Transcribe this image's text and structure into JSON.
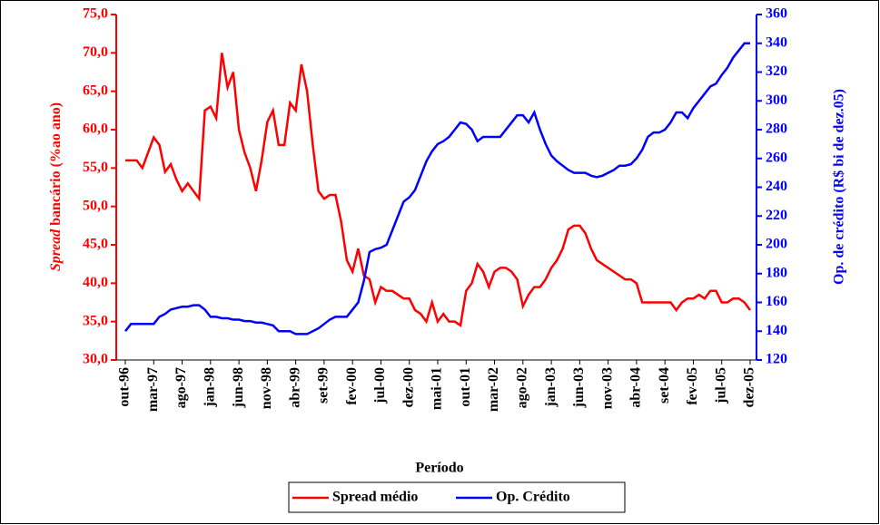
{
  "chart_data": {
    "type": "line",
    "ylabel": [
      "Spread",
      "bancário (%ao ano)"
    ],
    "y2label": "Op. de crédito (R$ bi de dez.05)",
    "xlabel": "Período",
    "categories": [
      "out-96",
      null,
      null,
      null,
      null,
      "mar-97",
      null,
      null,
      null,
      null,
      "ago-97",
      null,
      null,
      null,
      null,
      "jan-98",
      null,
      null,
      null,
      null,
      "jun-98",
      null,
      null,
      null,
      null,
      "nov-98",
      null,
      null,
      null,
      null,
      "abr-99",
      null,
      null,
      null,
      null,
      "set-99",
      null,
      null,
      null,
      null,
      "fev-00",
      null,
      null,
      null,
      null,
      "jul-00",
      null,
      null,
      null,
      null,
      "dez-00",
      null,
      null,
      null,
      null,
      "mai-01",
      null,
      null,
      null,
      null,
      "out-01",
      null,
      null,
      null,
      null,
      "mar-02",
      null,
      null,
      null,
      null,
      "ago-02",
      null,
      null,
      null,
      null,
      "jan-03",
      null,
      null,
      null,
      null,
      "jun-03",
      null,
      null,
      null,
      null,
      "nov-03",
      null,
      null,
      null,
      null,
      "abr-04",
      null,
      null,
      null,
      null,
      "set-04",
      null,
      null,
      null,
      null,
      "fev-05",
      null,
      null,
      null,
      null,
      "jul-05",
      null,
      null,
      null,
      null,
      "dez-05"
    ],
    "series": [
      {
        "name": "Spread médio",
        "color": "#ff0000",
        "axis": "y",
        "values": [
          56,
          56,
          56,
          55,
          57,
          59,
          58,
          54.5,
          55.5,
          53.5,
          52,
          53,
          52,
          51,
          62.5,
          63,
          61.5,
          70,
          65.5,
          67.5,
          60,
          57,
          55,
          52,
          56,
          61,
          62.5,
          58,
          58,
          63.5,
          62.5,
          68.5,
          65,
          58,
          52,
          51,
          51.5,
          51.5,
          48,
          43,
          41.5,
          44.5,
          41,
          40.5,
          37.5,
          39.5,
          39,
          39,
          38.5,
          38,
          38,
          36.5,
          36,
          35,
          37.5,
          35,
          36,
          35,
          35,
          34.5,
          39,
          40,
          42.5,
          41.5,
          39.5,
          41.5,
          42,
          42,
          41.5,
          40.5,
          37,
          38.5,
          39.5,
          39.5,
          40.5,
          42,
          43,
          44.5,
          47,
          47.5,
          47.5,
          46.5,
          44.5,
          43,
          42.5,
          42,
          41.5,
          41,
          40.5,
          40.5,
          40,
          37.5,
          37.5,
          37.5,
          37.5,
          37.5,
          37.5,
          36.5,
          37.5,
          38,
          38,
          38.5,
          38,
          39,
          39,
          37.5,
          37.5,
          38,
          38,
          37.5,
          36.5
        ]
      },
      {
        "name": "Op. Crédito",
        "color": "#0000ff",
        "axis": "y2",
        "values": [
          140,
          145,
          145,
          145,
          145,
          145,
          150,
          152,
          155,
          156,
          157,
          157,
          158,
          158,
          155,
          150,
          150,
          149,
          149,
          148,
          148,
          147,
          147,
          146,
          146,
          145,
          144,
          140,
          140,
          140,
          138,
          138,
          138,
          140,
          142,
          145,
          148,
          150,
          150,
          150,
          155,
          160,
          175,
          195,
          197,
          198,
          200,
          210,
          220,
          230,
          233,
          238,
          248,
          258,
          265,
          270,
          272,
          275,
          280,
          285,
          284,
          280,
          272,
          275,
          275,
          275,
          275,
          280,
          285,
          290,
          290,
          285,
          292,
          280,
          270,
          262,
          258,
          255,
          252,
          250,
          250,
          250,
          248,
          247,
          248,
          250,
          252,
          255,
          255,
          256,
          260,
          266,
          275,
          278,
          278,
          280,
          285,
          292,
          292,
          288,
          295,
          300,
          305,
          310,
          312,
          318,
          323,
          330,
          335,
          340,
          340
        ]
      }
    ],
    "ylim": [
      30,
      75
    ],
    "yticks": [
      {
        "value": 30,
        "label": "30,0"
      },
      {
        "value": 35,
        "label": "35,0"
      },
      {
        "value": 40,
        "label": "40,0"
      },
      {
        "value": 45,
        "label": "45,0"
      },
      {
        "value": 50,
        "label": "50,0"
      },
      {
        "value": 55,
        "label": "55,0"
      },
      {
        "value": 60,
        "label": "60,0"
      },
      {
        "value": 65,
        "label": "65,0"
      },
      {
        "value": 70,
        "label": "70,0"
      },
      {
        "value": 75,
        "label": "75,0"
      }
    ],
    "y2lim": [
      120,
      360
    ],
    "y2ticks": [
      120,
      140,
      160,
      180,
      200,
      220,
      240,
      260,
      280,
      300,
      320,
      340,
      360
    ],
    "grid": false
  }
}
